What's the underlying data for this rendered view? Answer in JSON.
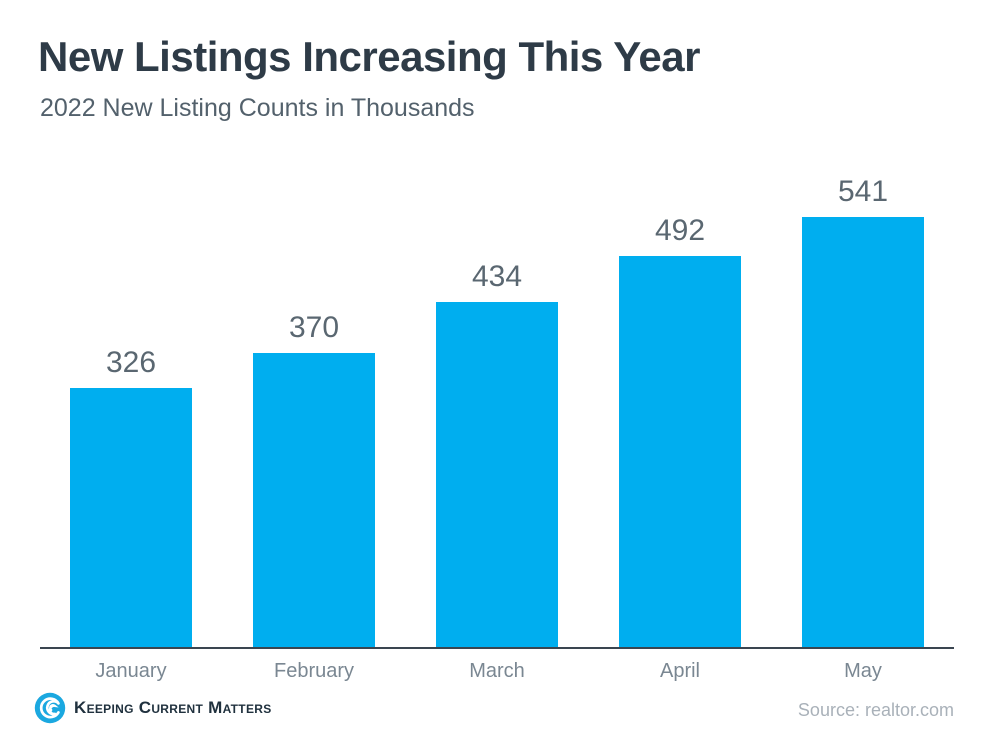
{
  "header": {
    "title": "New Listings Increasing This Year",
    "subtitle": "2022 New Listing Counts in Thousands"
  },
  "chart_data": {
    "type": "bar",
    "categories": [
      "January",
      "February",
      "March",
      "April",
      "May"
    ],
    "values": [
      326,
      370,
      434,
      492,
      541
    ],
    "title": "New Listings Increasing This Year",
    "subtitle": "2022 New Listing Counts in Thousands",
    "xlabel": "",
    "ylabel": "",
    "ylim": [
      0,
      580
    ],
    "grid": false,
    "legend": false,
    "data_labels": true,
    "bar_color": "#00AEEF",
    "value_label_color": "#5A6771",
    "category_label_color": "#7A8792",
    "axis_line_color": "#3A4550"
  },
  "footer": {
    "logo_text": "Keeping Current Matters",
    "logo_color": "#1BA8E0",
    "source": "Source: realtor.com"
  }
}
